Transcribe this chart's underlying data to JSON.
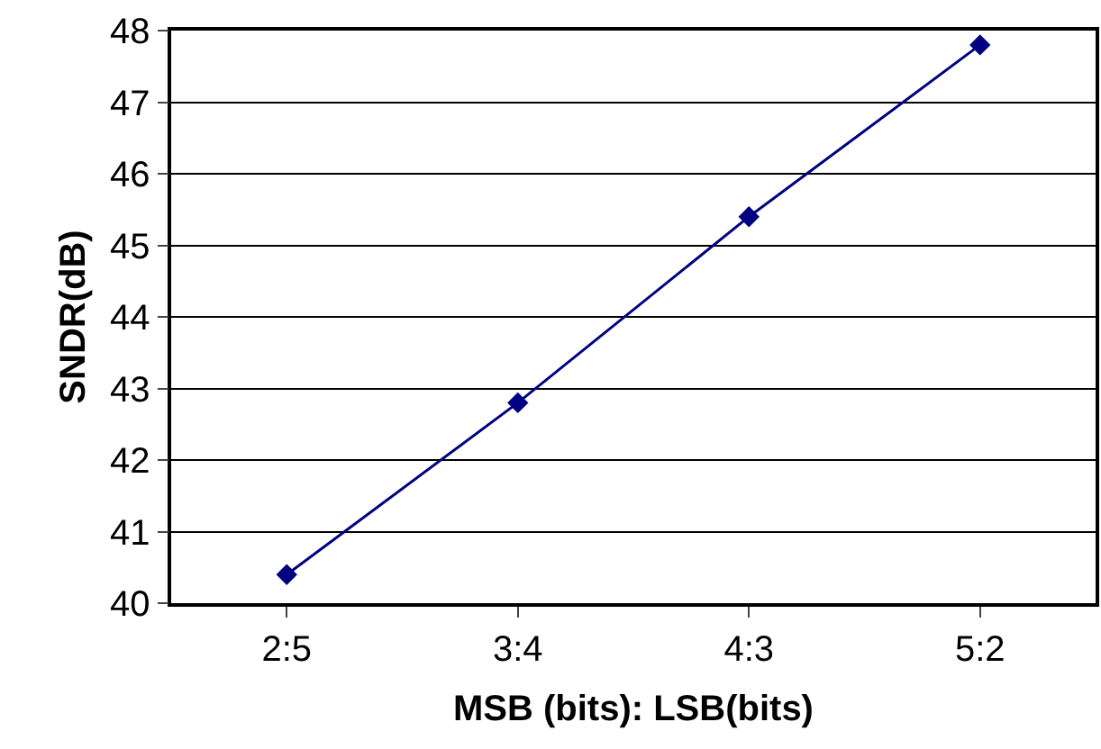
{
  "chart_data": {
    "type": "line",
    "xlabel": "MSB (bits): LSB(bits)",
    "ylabel": "SNDR(dB)",
    "categories": [
      "2:5",
      "3:4",
      "4:3",
      "5:2"
    ],
    "series": [
      {
        "color": "#000080",
        "values": [
          40.4,
          42.8,
          45.4,
          47.8
        ]
      }
    ],
    "ylim": [
      40,
      48
    ],
    "yticks": [
      40,
      41,
      42,
      43,
      44,
      45,
      46,
      47,
      48
    ],
    "grid": "y",
    "marker": "diamond",
    "line_style": "solid",
    "legend": false
  }
}
